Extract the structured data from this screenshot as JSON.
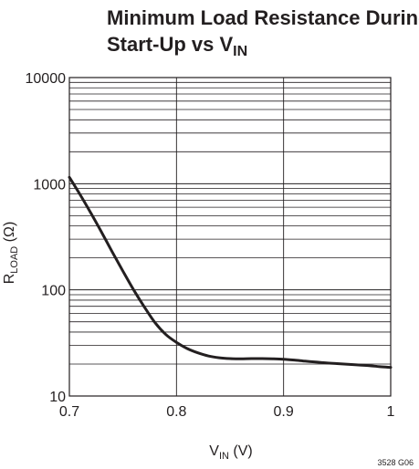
{
  "chart_data": {
    "type": "line",
    "title_line1": "Minimum Load Resistance During",
    "title_line2_main": "Start-Up vs V",
    "title_line2_sub": "IN",
    "xlabel_main": "V",
    "xlabel_sub": "IN",
    "xlabel_unit": " (V)",
    "ylabel_main": "R",
    "ylabel_sub": "LOAD",
    "ylabel_unit": " (Ω)",
    "figure_id": "3528 G06",
    "xlim": [
      0.7,
      1.0
    ],
    "ylim": [
      10,
      10000
    ],
    "yscale": "log",
    "grid": true,
    "x_ticks": [
      {
        "value": 0.7,
        "label": "0.7"
      },
      {
        "value": 0.8,
        "label": "0.8"
      },
      {
        "value": 0.9,
        "label": "0.9"
      },
      {
        "value": 1.0,
        "label": "1"
      }
    ],
    "y_ticks": [
      {
        "value": 10,
        "label": "10"
      },
      {
        "value": 100,
        "label": "100"
      },
      {
        "value": 1000,
        "label": "1000"
      },
      {
        "value": 10000,
        "label": "10000"
      }
    ],
    "colors": {
      "line": "#231f20",
      "grid": "#231f20"
    },
    "series": [
      {
        "x": [
          0.7,
          0.71,
          0.72,
          0.73,
          0.74,
          0.75,
          0.76,
          0.77,
          0.78,
          0.79,
          0.8,
          0.81,
          0.82,
          0.83,
          0.84,
          0.85,
          0.86,
          0.87,
          0.88,
          0.89,
          0.9,
          0.91,
          0.92,
          0.93,
          0.94,
          0.95,
          0.96,
          0.97,
          0.98,
          0.99,
          1.0
        ],
        "y": [
          1150,
          790,
          530,
          350,
          228,
          150,
          100,
          69,
          49,
          38,
          32,
          28,
          25.5,
          23.8,
          22.9,
          22.5,
          22.4,
          22.5,
          22.5,
          22.4,
          22.2,
          21.8,
          21.3,
          20.9,
          20.5,
          20.2,
          19.9,
          19.6,
          19.3,
          18.9,
          18.6
        ]
      }
    ]
  }
}
